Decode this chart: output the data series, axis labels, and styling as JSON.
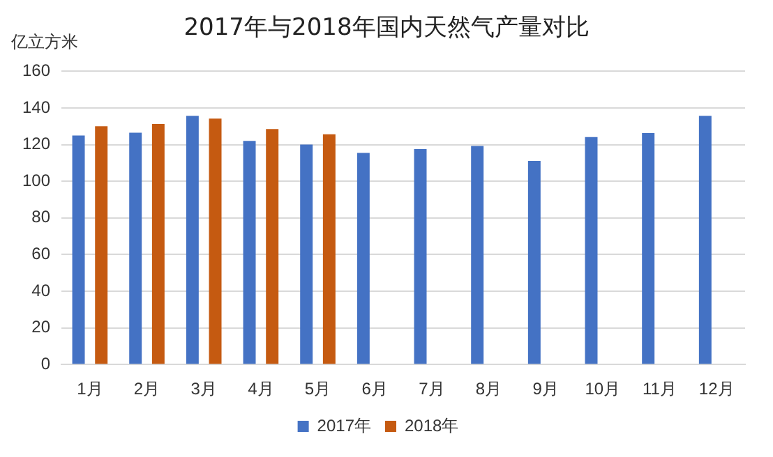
{
  "chart_data": {
    "type": "bar",
    "title": "2017年与2018年国内天然气产量对比",
    "ylabel": "亿立方米",
    "categories": [
      "1月",
      "2月",
      "3月",
      "4月",
      "5月",
      "6月",
      "7月",
      "8月",
      "9月",
      "10月",
      "11月",
      "12月"
    ],
    "series": [
      {
        "name": "2017年",
        "color": "#4472c4",
        "values": [
          125,
          126.5,
          135.7,
          122,
          120,
          115.5,
          117.6,
          119.3,
          111.1,
          124.1,
          126.3,
          135.7
        ]
      },
      {
        "name": "2018年",
        "color": "#c55a11",
        "values": [
          130,
          131.3,
          134.2,
          128.5,
          125.6,
          null,
          null,
          null,
          null,
          null,
          null,
          null
        ]
      }
    ],
    "ylim": [
      0,
      160
    ],
    "yticks": [
      0,
      20,
      40,
      60,
      80,
      100,
      120,
      140,
      160
    ],
    "grid": "y",
    "legend": "bottom"
  }
}
